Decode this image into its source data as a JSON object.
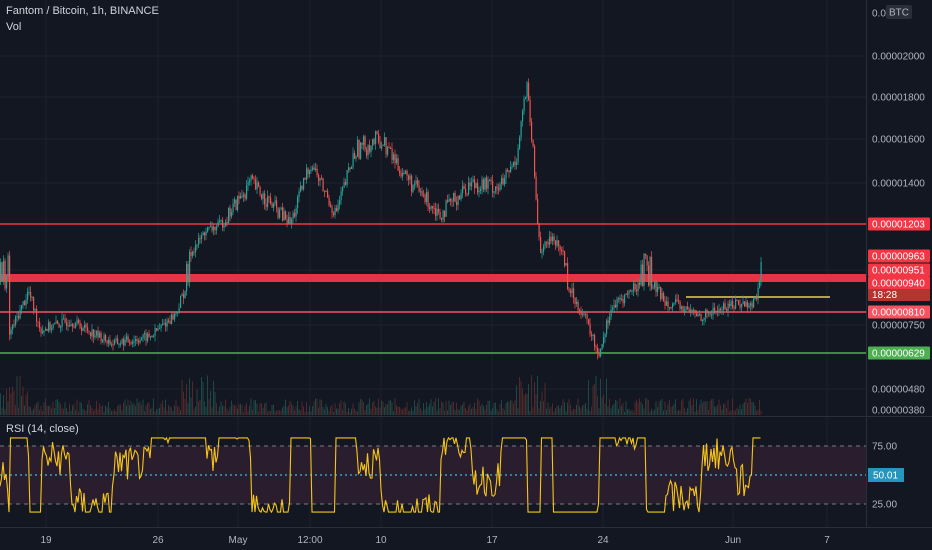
{
  "header": {
    "symbol": "Fantom / Bitcoin, 1h, BINANCE",
    "volume_label": "Vol"
  },
  "rsi_panel": {
    "title": "RSI (14, close)",
    "value_label": "50.01",
    "levels": [
      {
        "label": "75.00",
        "value": 75
      },
      {
        "label": "50.01",
        "value": 50.01
      },
      {
        "label": "25.00",
        "value": 25
      }
    ]
  },
  "price_axis": {
    "currency": "BTC",
    "ticks": [
      "0.0",
      "0.00002000",
      "0.00001800",
      "0.00001600",
      "0.00001400",
      "0.00000750",
      "0.00000480",
      "0.00000380"
    ]
  },
  "time_axis": {
    "ticks": [
      "19",
      "26",
      "May",
      "12:00",
      "10",
      "17",
      "24",
      "Jun",
      "7"
    ]
  },
  "levels": [
    {
      "label": "0.00001203",
      "value": 1.203e-05,
      "color": "#f23645"
    },
    {
      "label": "0.00000963",
      "value": 9.63e-06,
      "color": "#f23645"
    },
    {
      "label": "0.00000951",
      "value": 9.51e-06,
      "color": "#f23645"
    },
    {
      "label": "0.00000940",
      "value": 9.4e-06,
      "color": "#f23645"
    },
    {
      "label": "0.00000810",
      "value": 8.1e-06,
      "color": "#f7525f"
    },
    {
      "label": "0.00000629",
      "value": 6.29e-06,
      "color": "#4caf50"
    }
  ],
  "countdown": "18:28",
  "colors": {
    "background": "#131722",
    "candle_up": "#26a69a",
    "candle_down": "#ef5350",
    "resistance": "#f23645",
    "support": "#4caf50",
    "rsi_line": "#f5c518",
    "rsi_band": "#2a1e2e",
    "midline": "#2fa2c8",
    "target_line": "#e6d34a"
  },
  "chart_data": [
    {
      "type": "candlestick",
      "title": "Fantom / Bitcoin, 1h, BINANCE",
      "x_ticks": [
        "19",
        "26",
        "May",
        "12:00",
        "10",
        "17",
        "24",
        "Jun",
        "7"
      ],
      "y_ticks": [
        3.8e-06,
        4.8e-06,
        7.5e-06,
        1.4e-05,
        1.6e-05,
        1.8e-05,
        2e-05
      ],
      "ylabel": "BTC",
      "close_series": [
        {
          "x": "19",
          "y": 7.8e-06
        },
        {
          "x": "24 (early)",
          "y": 7e-06
        },
        {
          "x": "26",
          "y": 7.5e-06
        },
        {
          "x": "May",
          "y": 1.4e-05
        },
        {
          "x": "12:00",
          "y": 1.38e-05
        },
        {
          "x": "10",
          "y": 1.5e-05
        },
        {
          "x": "17",
          "y": 1.6e-05
        },
        {
          "x": "24",
          "y": 6.5e-06
        },
        {
          "x": "Jun",
          "y": 8.2e-06
        },
        {
          "x": "last",
          "y": 9.4e-06
        }
      ],
      "horizontal_levels": [
        1.203e-05,
        9.63e-06,
        9.51e-06,
        9.4e-06,
        8.1e-06,
        6.29e-06
      ],
      "last_price": 9.4e-06
    },
    {
      "type": "line",
      "title": "RSI (14, close)",
      "x_ticks": [
        "19",
        "26",
        "May",
        "12:00",
        "10",
        "17",
        "24",
        "Jun",
        "7"
      ],
      "y_ticks": [
        25,
        50.01,
        75
      ],
      "reference_lines": [
        75,
        50.01,
        25
      ],
      "last_value": 50.01
    }
  ]
}
